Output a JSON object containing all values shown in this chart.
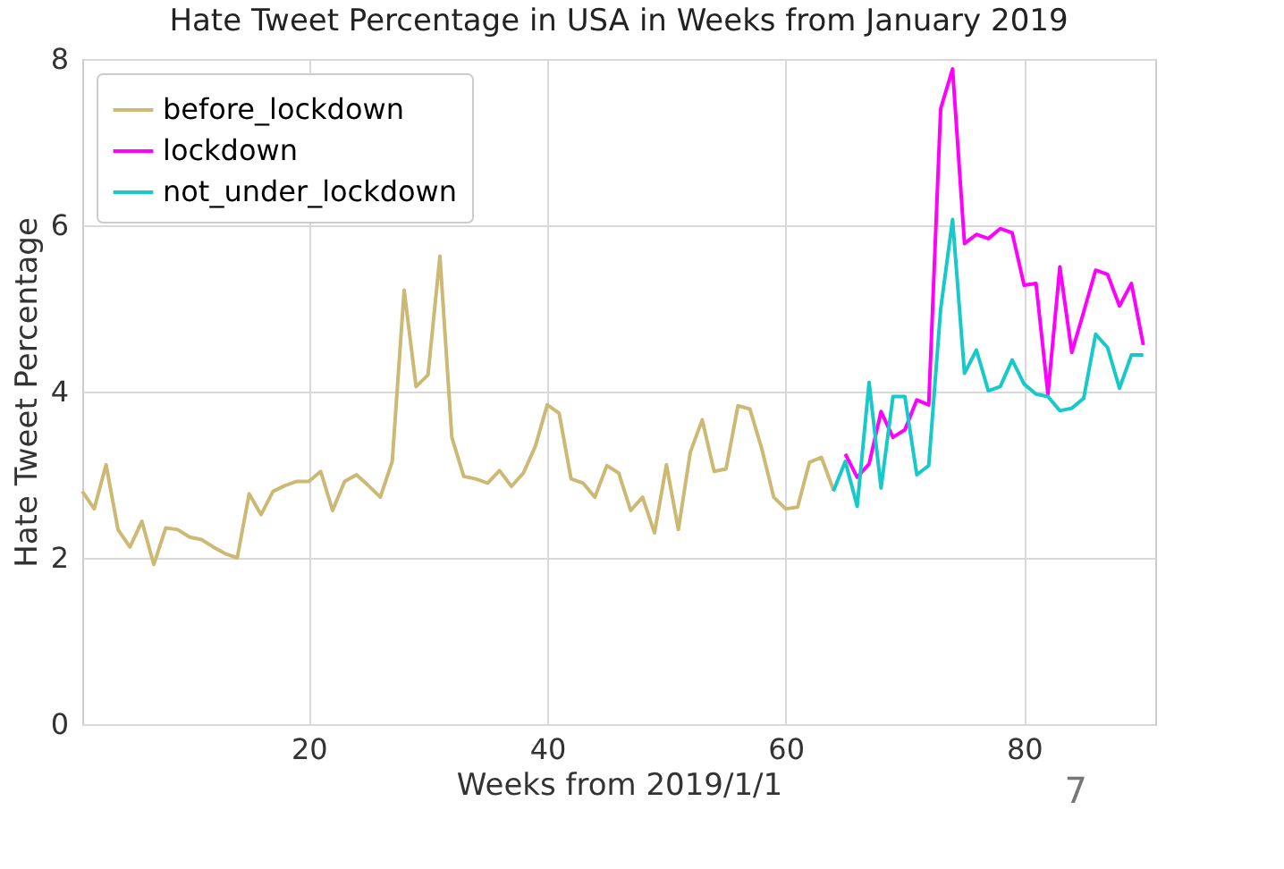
{
  "chart_data": {
    "type": "line",
    "title": "Hate Tweet Percentage in USA in Weeks from January 2019",
    "xlabel": "Weeks from 2019/1/1",
    "ylabel": "Hate Tweet Percentage",
    "xlim": [
      1,
      91
    ],
    "xticks": [
      20,
      40,
      60,
      80
    ],
    "ylim": [
      0,
      8
    ],
    "yticks": [
      0,
      2,
      4,
      6,
      8
    ],
    "grid": true,
    "legend": "top left",
    "line_style": "solid",
    "marker": "none",
    "annotations": [
      "7"
    ],
    "series": [
      {
        "name": "before_lockdown",
        "color": "#ccb974",
        "x": [
          1,
          2,
          3,
          4,
          5,
          6,
          7,
          8,
          9,
          10,
          11,
          12,
          13,
          14,
          15,
          16,
          17,
          18,
          19,
          20,
          21,
          22,
          23,
          24,
          25,
          26,
          27,
          28,
          29,
          30,
          31,
          32,
          33,
          34,
          35,
          36,
          37,
          38,
          39,
          40,
          41,
          42,
          43,
          44,
          45,
          46,
          47,
          48,
          49,
          50,
          51,
          52,
          53,
          54,
          55,
          56,
          57,
          58,
          59,
          60,
          61,
          62,
          63,
          64
        ],
        "values": [
          2.8,
          2.59,
          3.12,
          2.34,
          2.13,
          2.44,
          1.92,
          2.36,
          2.34,
          2.25,
          2.22,
          2.13,
          2.05,
          2.0,
          2.77,
          2.52,
          2.8,
          2.87,
          2.92,
          2.92,
          3.04,
          2.57,
          2.92,
          3.0,
          2.87,
          2.73,
          3.16,
          5.22,
          4.06,
          4.2,
          5.63,
          3.45,
          2.98,
          2.95,
          2.9,
          3.05,
          2.86,
          3.02,
          3.34,
          3.84,
          3.74,
          2.95,
          2.9,
          2.73,
          3.11,
          3.02,
          2.57,
          2.73,
          2.3,
          3.12,
          2.34,
          3.27,
          3.66,
          3.04,
          3.07,
          3.83,
          3.79,
          3.31,
          2.73,
          2.59,
          2.61,
          3.15,
          3.21,
          2.82
        ]
      },
      {
        "name": "lockdown",
        "color": "#ff00ff",
        "x": [
          65,
          66,
          67,
          68,
          69,
          70,
          71,
          72,
          73,
          74,
          75,
          76,
          77,
          78,
          79,
          80,
          81,
          82,
          83,
          84,
          85,
          86,
          87,
          88,
          89,
          90
        ],
        "values": [
          3.25,
          2.97,
          3.13,
          3.76,
          3.45,
          3.54,
          3.9,
          3.84,
          7.4,
          7.88,
          5.78,
          5.89,
          5.84,
          5.96,
          5.91,
          5.28,
          5.3,
          3.97,
          5.5,
          4.47,
          4.96,
          5.46,
          5.41,
          5.03,
          5.3,
          4.56
        ]
      },
      {
        "name": "not_under_lockdown",
        "color": "#17c9c9",
        "x": [
          64,
          65,
          66,
          67,
          68,
          69,
          70,
          71,
          72,
          73,
          74,
          75,
          76,
          77,
          78,
          79,
          80,
          81,
          82,
          83,
          84,
          85,
          86,
          87,
          88,
          89,
          90
        ],
        "values": [
          2.8,
          3.16,
          2.62,
          4.11,
          2.84,
          3.94,
          3.94,
          3.0,
          3.11,
          4.99,
          6.07,
          4.22,
          4.5,
          4.01,
          4.06,
          4.38,
          4.09,
          3.97,
          3.94,
          3.77,
          3.8,
          3.92,
          4.69,
          4.53,
          4.04,
          4.44,
          4.44
        ]
      }
    ]
  }
}
